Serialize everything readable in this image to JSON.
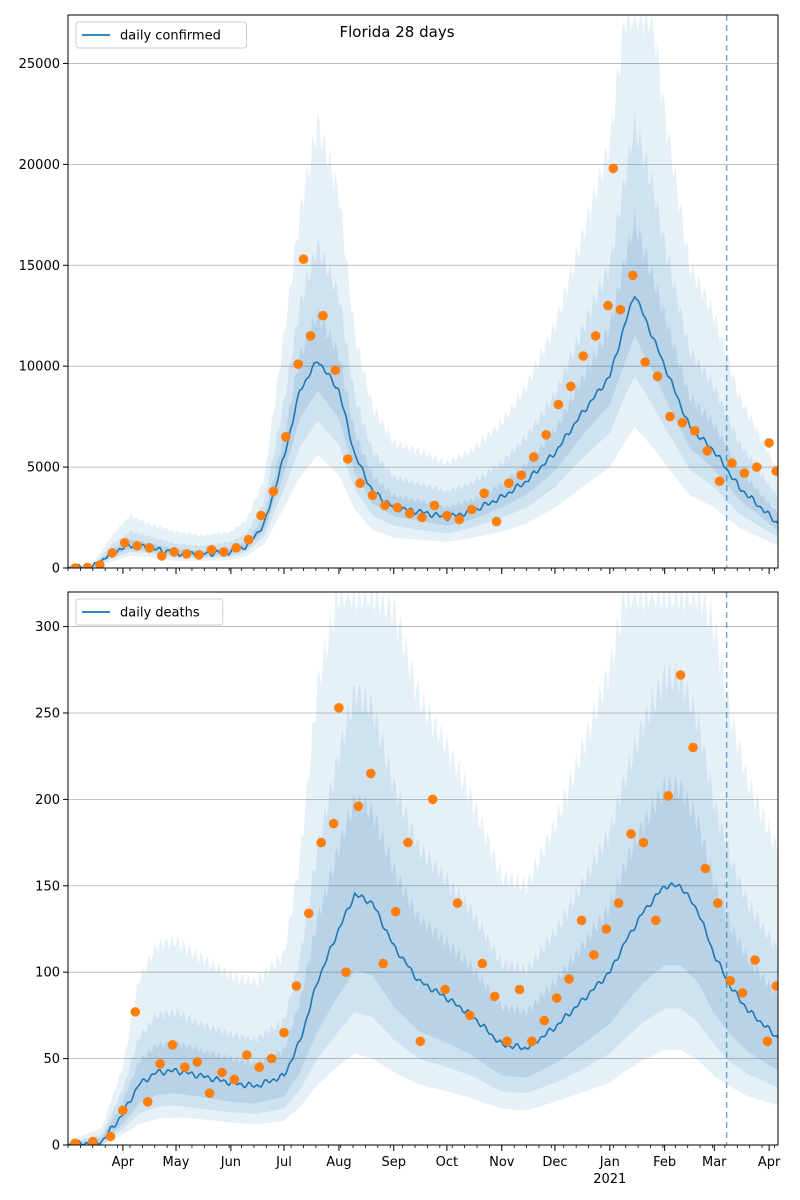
{
  "figure_title": "Florida 28 days",
  "colors": {
    "line": "#1f77b4",
    "points": "#ff7f0e",
    "band": "#1f77b4",
    "grid": "#b0b0b0",
    "forecast_divider": "#1f77b4"
  },
  "chart_data": [
    {
      "type": "line",
      "title": "",
      "legend": {
        "labels": [
          "daily confirmed"
        ],
        "placement": "top-left"
      },
      "xlabel": "",
      "ylabel": "",
      "x_tick_labels": [
        "Apr",
        "May",
        "Jun",
        "Jul",
        "Aug",
        "Sep",
        "Oct",
        "Nov",
        "Dec",
        "Jan",
        "Feb",
        "Mar",
        "Apr"
      ],
      "x_tick_dates": [
        "2020-04-01",
        "2020-05-01",
        "2020-06-01",
        "2020-07-01",
        "2020-08-01",
        "2020-09-01",
        "2020-10-01",
        "2020-11-01",
        "2020-12-01",
        "2021-01-01",
        "2021-02-01",
        "2021-03-01",
        "2021-04-01"
      ],
      "year_label": "2021",
      "xlim": [
        "2020-03-01",
        "2021-04-06"
      ],
      "ylim": [
        0,
        27400
      ],
      "y_ticks": [
        0,
        5000,
        10000,
        15000,
        20000,
        25000
      ],
      "grid": "horizontal",
      "forecast_divider_date": "2021-03-08",
      "series": [
        {
          "name": "daily confirmed",
          "dates": [
            "2020-03-01",
            "2020-03-15",
            "2020-03-25",
            "2020-04-05",
            "2020-04-15",
            "2020-05-01",
            "2020-05-15",
            "2020-06-01",
            "2020-06-10",
            "2020-06-20",
            "2020-07-01",
            "2020-07-10",
            "2020-07-20",
            "2020-08-01",
            "2020-08-10",
            "2020-08-20",
            "2020-09-01",
            "2020-09-15",
            "2020-10-01",
            "2020-10-15",
            "2020-11-01",
            "2020-11-15",
            "2020-12-01",
            "2020-12-15",
            "2021-01-01",
            "2021-01-10",
            "2021-01-15",
            "2021-01-25",
            "2021-02-01",
            "2021-02-15",
            "2021-03-01",
            "2021-03-15",
            "2021-04-06"
          ],
          "values": [
            0,
            30,
            700,
            1150,
            1000,
            750,
            700,
            800,
            1100,
            2200,
            5500,
            8800,
            10300,
            8800,
            5600,
            3800,
            3000,
            2800,
            2500,
            2800,
            3500,
            4300,
            5700,
            7500,
            9500,
            12200,
            13600,
            11500,
            10000,
            7000,
            5800,
            4000,
            2200
          ]
        }
      ],
      "bands": [
        {
          "lower": [
            0,
            0,
            300,
            600,
            550,
            350,
            350,
            400,
            600,
            1200,
            3000,
            4500,
            5600,
            4600,
            2900,
            1900,
            1500,
            1400,
            1300,
            1500,
            1800,
            2200,
            3000,
            3900,
            5000,
            6300,
            7000,
            6000,
            5200,
            3600,
            3000,
            2000,
            1100
          ],
          "upper": [
            100,
            200,
            1500,
            2600,
            2200,
            1800,
            1600,
            1800,
            2400,
            4500,
            11500,
            17500,
            22000,
            18500,
            11500,
            8000,
            6200,
            5800,
            5200,
            5800,
            7200,
            9000,
            12000,
            16000,
            21000,
            27400,
            27400,
            27400,
            22500,
            15000,
            12500,
            8500,
            4800
          ]
        },
        {
          "lower": [
            0,
            0,
            450,
            800,
            750,
            500,
            500,
            550,
            800,
            1600,
            3900,
            6000,
            7300,
            6100,
            3900,
            2600,
            2100,
            1900,
            1700,
            2000,
            2500,
            3000,
            4000,
            5300,
            6700,
            8600,
            9500,
            8100,
            7000,
            4900,
            4000,
            2700,
            1500
          ],
          "upper": [
            50,
            100,
            1100,
            1800,
            1600,
            1200,
            1100,
            1300,
            1700,
            3300,
            8200,
            13000,
            16000,
            13500,
            8500,
            5800,
            4500,
            4200,
            3800,
            4200,
            5200,
            6500,
            8600,
            11500,
            15000,
            19500,
            22000,
            19000,
            16000,
            10800,
            9000,
            6200,
            3500
          ]
        },
        {
          "lower": [
            0,
            0,
            570,
            960,
            860,
            620,
            600,
            680,
            950,
            1900,
            4700,
            7400,
            8800,
            7400,
            4700,
            3200,
            2550,
            2350,
            2100,
            2400,
            3000,
            3650,
            4800,
            6400,
            8100,
            10300,
            11500,
            9800,
            8500,
            5950,
            4900,
            3400,
            1850
          ],
          "upper": [
            30,
            60,
            850,
            1400,
            1250,
            950,
            850,
            1000,
            1300,
            2600,
            6500,
            10500,
            12600,
            10600,
            6700,
            4600,
            3600,
            3350,
            3000,
            3350,
            4150,
            5150,
            6800,
            9100,
            11900,
            15400,
            17200,
            14500,
            12500,
            8500,
            7100,
            4900,
            2700
          ]
        }
      ],
      "observed": {
        "dates": [
          "2020-03-05",
          "2020-03-12",
          "2020-03-19",
          "2020-03-26",
          "2020-04-02",
          "2020-04-09",
          "2020-04-16",
          "2020-04-23",
          "2020-04-30",
          "2020-05-07",
          "2020-05-14",
          "2020-05-21",
          "2020-05-28",
          "2020-06-04",
          "2020-06-11",
          "2020-06-18",
          "2020-06-25",
          "2020-07-02",
          "2020-07-09",
          "2020-07-12",
          "2020-07-16",
          "2020-07-23",
          "2020-07-30",
          "2020-08-06",
          "2020-08-13",
          "2020-08-20",
          "2020-08-27",
          "2020-09-03",
          "2020-09-10",
          "2020-09-17",
          "2020-09-24",
          "2020-10-01",
          "2020-10-08",
          "2020-10-15",
          "2020-10-22",
          "2020-10-29",
          "2020-11-05",
          "2020-11-12",
          "2020-11-19",
          "2020-11-26",
          "2020-12-03",
          "2020-12-10",
          "2020-12-17",
          "2020-12-24",
          "2020-12-31",
          "2021-01-03",
          "2021-01-07",
          "2021-01-14",
          "2021-01-21",
          "2021-01-28",
          "2021-02-04",
          "2021-02-11",
          "2021-02-18",
          "2021-02-25",
          "2021-03-04",
          "2021-03-11",
          "2021-03-18",
          "2021-03-25",
          "2021-04-01",
          "2021-04-05"
        ],
        "values": [
          0,
          20,
          150,
          750,
          1250,
          1100,
          1000,
          600,
          800,
          700,
          650,
          900,
          800,
          1000,
          1400,
          2600,
          3800,
          6500,
          10100,
          15300,
          11500,
          12500,
          9800,
          5400,
          4200,
          3600,
          3100,
          3000,
          2700,
          2500,
          3100,
          2600,
          2400,
          2900,
          3700,
          2300,
          4200,
          4600,
          5500,
          6600,
          8100,
          9000,
          10500,
          11500,
          13000,
          19800,
          12800,
          14500,
          10200,
          9500,
          7500,
          7200,
          6800,
          5800,
          4300,
          5200,
          4700,
          5000,
          6200,
          4800
        ]
      }
    },
    {
      "type": "line",
      "title": "",
      "legend": {
        "labels": [
          "daily deaths"
        ],
        "placement": "top-left"
      },
      "xlabel": "",
      "ylabel": "",
      "x_tick_labels": [
        "Apr",
        "May",
        "Jun",
        "Jul",
        "Aug",
        "Sep",
        "Oct",
        "Nov",
        "Dec",
        "Jan",
        "Feb",
        "Mar",
        "Apr"
      ],
      "x_tick_dates": [
        "2020-04-01",
        "2020-05-01",
        "2020-06-01",
        "2020-07-01",
        "2020-08-01",
        "2020-09-01",
        "2020-10-01",
        "2020-11-01",
        "2020-12-01",
        "2021-01-01",
        "2021-02-01",
        "2021-03-01",
        "2021-04-01"
      ],
      "year_label": "2021",
      "xlim": [
        "2020-03-01",
        "2021-04-06"
      ],
      "ylim": [
        0,
        320
      ],
      "y_ticks": [
        0,
        50,
        100,
        150,
        200,
        250,
        300
      ],
      "grid": "horizontal",
      "forecast_divider_date": "2021-03-08",
      "series": [
        {
          "name": "daily deaths",
          "dates": [
            "2020-03-01",
            "2020-03-20",
            "2020-04-01",
            "2020-04-10",
            "2020-04-20",
            "2020-05-01",
            "2020-05-15",
            "2020-06-01",
            "2020-06-15",
            "2020-07-01",
            "2020-07-10",
            "2020-07-20",
            "2020-08-01",
            "2020-08-10",
            "2020-08-20",
            "2020-09-01",
            "2020-09-15",
            "2020-10-01",
            "2020-10-15",
            "2020-11-01",
            "2020-11-15",
            "2020-12-01",
            "2020-12-15",
            "2021-01-01",
            "2021-01-10",
            "2021-01-20",
            "2021-02-01",
            "2021-02-10",
            "2021-02-20",
            "2021-03-01",
            "2021-03-10",
            "2021-03-20",
            "2021-04-06"
          ],
          "values": [
            0,
            2,
            18,
            35,
            42,
            43,
            40,
            36,
            34,
            40,
            60,
            95,
            125,
            145,
            140,
            115,
            95,
            85,
            75,
            58,
            56,
            68,
            82,
            100,
            118,
            135,
            150,
            150,
            135,
            110,
            92,
            78,
            62
          ]
        }
      ],
      "bands": [
        {
          "lower": [
            0,
            0,
            6,
            12,
            15,
            16,
            15,
            13,
            12,
            14,
            22,
            35,
            46,
            53,
            50,
            42,
            35,
            31,
            27,
            21,
            20,
            25,
            30,
            36,
            43,
            49,
            55,
            55,
            49,
            40,
            34,
            28,
            23
          ],
          "upper": [
            2,
            10,
            45,
            95,
            115,
            118,
            108,
            98,
            94,
            110,
            165,
            265,
            320,
            320,
            320,
            310,
            260,
            230,
            200,
            155,
            150,
            185,
            225,
            275,
            320,
            320,
            320,
            320,
            320,
            300,
            250,
            210,
            170
          ]
        },
        {
          "lower": [
            0,
            0,
            9,
            18,
            22,
            23,
            21,
            19,
            18,
            21,
            32,
            50,
            66,
            77,
            74,
            61,
            50,
            45,
            40,
            31,
            30,
            36,
            43,
            53,
            62,
            71,
            79,
            79,
            71,
            58,
            48,
            41,
            33
          ],
          "upper": [
            1,
            6,
            32,
            62,
            75,
            77,
            70,
            64,
            61,
            72,
            108,
            172,
            226,
            262,
            253,
            208,
            172,
            153,
            135,
            105,
            101,
            123,
            148,
            181,
            213,
            244,
            270,
            270,
            244,
            198,
            166,
            140,
            112
          ]
        },
        {
          "lower": [
            0,
            1,
            12,
            24,
            29,
            30,
            28,
            25,
            24,
            28,
            42,
            66,
            87,
            101,
            98,
            80,
            66,
            59,
            52,
            40,
            39,
            47,
            57,
            70,
            82,
            94,
            104,
            104,
            94,
            76,
            64,
            54,
            43
          ],
          "upper": [
            1,
            4,
            25,
            48,
            58,
            59,
            55,
            50,
            47,
            55,
            83,
            131,
            172,
            200,
            193,
            159,
            131,
            117,
            103,
            80,
            77,
            94,
            113,
            138,
            163,
            186,
            207,
            207,
            186,
            152,
            127,
            108,
            86
          ]
        }
      ],
      "observed": {
        "dates": [
          "2020-03-05",
          "2020-03-15",
          "2020-03-25",
          "2020-04-01",
          "2020-04-08",
          "2020-04-15",
          "2020-04-22",
          "2020-04-29",
          "2020-05-06",
          "2020-05-13",
          "2020-05-20",
          "2020-05-27",
          "2020-06-03",
          "2020-06-10",
          "2020-06-17",
          "2020-06-24",
          "2020-07-01",
          "2020-07-08",
          "2020-07-15",
          "2020-07-22",
          "2020-07-29",
          "2020-08-01",
          "2020-08-05",
          "2020-08-12",
          "2020-08-19",
          "2020-08-26",
          "2020-09-02",
          "2020-09-09",
          "2020-09-16",
          "2020-09-23",
          "2020-09-30",
          "2020-10-07",
          "2020-10-14",
          "2020-10-21",
          "2020-10-28",
          "2020-11-04",
          "2020-11-11",
          "2020-11-18",
          "2020-11-25",
          "2020-12-02",
          "2020-12-09",
          "2020-12-16",
          "2020-12-23",
          "2020-12-30",
          "2021-01-06",
          "2021-01-13",
          "2021-01-20",
          "2021-01-27",
          "2021-02-03",
          "2021-02-10",
          "2021-02-17",
          "2021-02-24",
          "2021-03-03",
          "2021-03-10",
          "2021-03-17",
          "2021-03-24",
          "2021-03-31",
          "2021-04-05"
        ],
        "values": [
          1,
          2,
          5,
          20,
          77,
          25,
          47,
          58,
          45,
          48,
          30,
          42,
          38,
          52,
          45,
          50,
          65,
          92,
          134,
          175,
          186,
          253,
          100,
          196,
          215,
          105,
          135,
          175,
          60,
          200,
          90,
          140,
          75,
          105,
          86,
          60,
          90,
          60,
          72,
          85,
          96,
          130,
          110,
          125,
          140,
          180,
          175,
          130,
          202,
          272,
          230,
          160,
          140,
          95,
          88,
          107,
          60,
          92
        ]
      }
    }
  ]
}
